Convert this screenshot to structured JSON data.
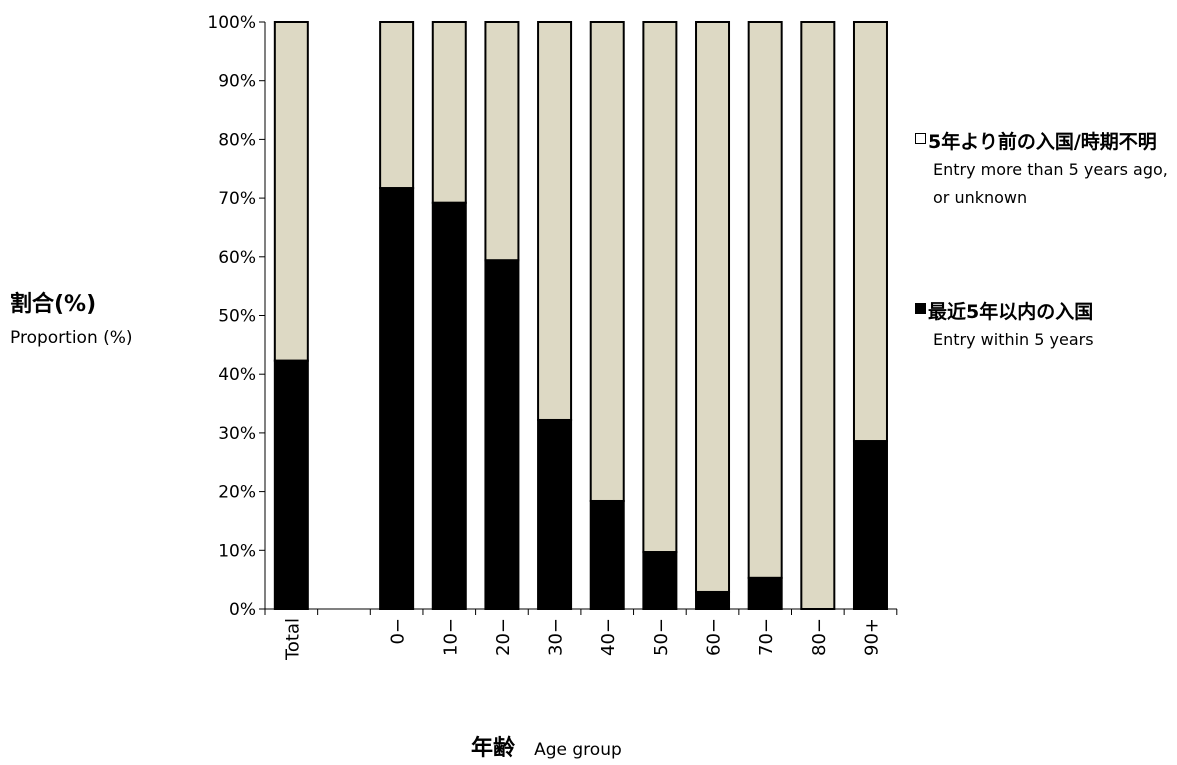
{
  "chart_data": {
    "type": "bar",
    "stacked": true,
    "categories": [
      "Total",
      "0-",
      "10-",
      "20-",
      "30-",
      "40-",
      "50-",
      "60-",
      "70-",
      "80-",
      "90+"
    ],
    "series": [
      {
        "name": "最近5年以内の入国 Entry within 5 years",
        "color": "#000000",
        "values": [
          42.3,
          71.7,
          69.2,
          59.4,
          32.2,
          18.4,
          9.7,
          2.9,
          5.3,
          0.0,
          28.6
        ]
      },
      {
        "name": "5年より前の入国/時期不明 Entry more than 5 years ago, or unknown",
        "color": "#ddd9c4",
        "values": [
          57.7,
          28.3,
          30.8,
          40.6,
          67.8,
          81.6,
          90.3,
          97.1,
          94.7,
          100.0,
          71.4
        ]
      }
    ],
    "ylim": [
      0,
      100
    ],
    "yticks": [
      "0%",
      "10%",
      "20%",
      "30%",
      "40%",
      "50%",
      "60%",
      "70%",
      "80%",
      "90%",
      "100%"
    ],
    "xtick_labels": [
      "Total",
      "0−",
      "10−",
      "20−",
      "30−",
      "40−",
      "50−",
      "60−",
      "70−",
      "80−",
      "90+"
    ],
    "ylabel_ja": "割合(%)",
    "ylabel_en": "Proportion (%)",
    "xlabel_ja": "年齢",
    "xlabel_en": "Age group",
    "legend_position": "right",
    "legend": [
      {
        "swatch": "light",
        "label_ja": "5年より前の入国/時期不明",
        "label_en": "Entry more than 5 years ago, or unknown"
      },
      {
        "swatch": "dark",
        "label_ja": "最近5年以内の入国",
        "label_en": "Entry within 5 years"
      }
    ]
  }
}
